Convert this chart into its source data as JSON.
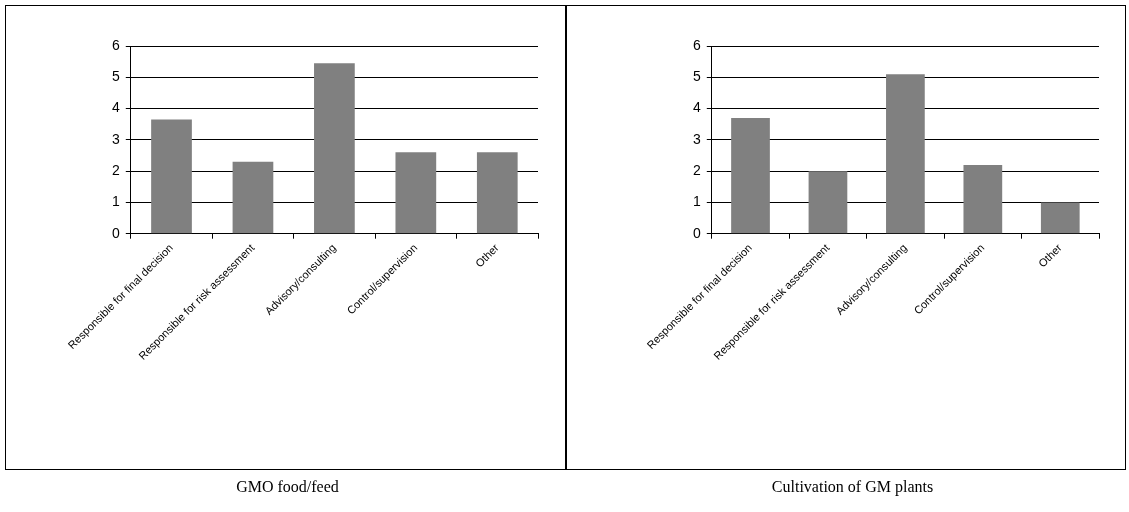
{
  "chart_data": [
    {
      "type": "bar",
      "title": "GMO food/feed",
      "categories": [
        "Responsible for final decision",
        "Responsible for risk assessment",
        "Advisory/consulting",
        "Control/supervision",
        "Other"
      ],
      "values": [
        3.65,
        2.3,
        5.45,
        2.6,
        2.6
      ],
      "color": "#808080",
      "ylim": [
        0,
        6
      ],
      "yticks": [
        0,
        1,
        2,
        3,
        4,
        5,
        6
      ],
      "grid": "y",
      "legend": false
    },
    {
      "type": "bar",
      "title": "Cultivation of GM plants",
      "categories": [
        "Responsible for final decision",
        "Responsible for risk assessment",
        "Advisory/consulting",
        "Control/supervision",
        "Other"
      ],
      "values": [
        3.7,
        2.0,
        5.1,
        2.2,
        1.0
      ],
      "color": "#808080",
      "ylim": [
        0,
        6
      ],
      "yticks": [
        0,
        1,
        2,
        3,
        4,
        5,
        6
      ],
      "grid": "y",
      "legend": false
    }
  ]
}
